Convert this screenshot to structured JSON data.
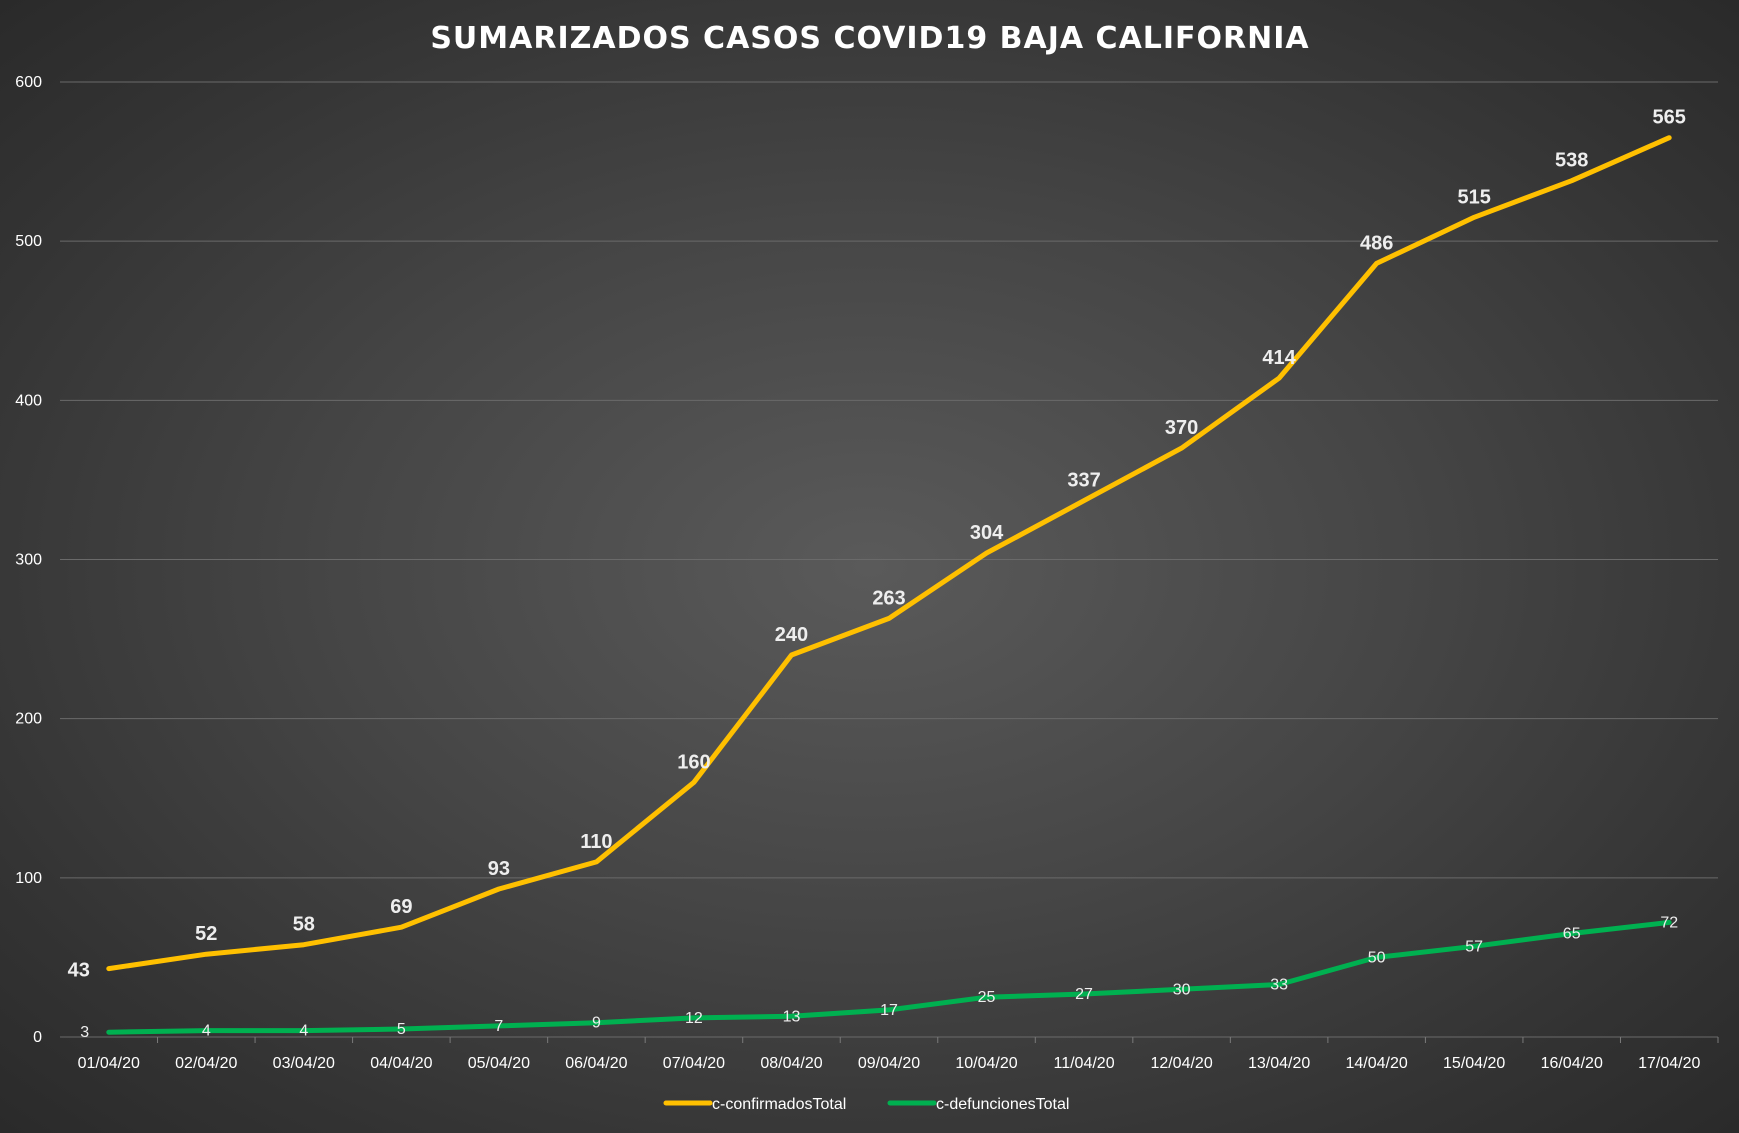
{
  "chart_data": {
    "type": "line",
    "title": "SUMARIZADOS CASOS COVID19 BAJA CALIFORNIA",
    "xlabel": "",
    "ylabel": "",
    "ylim": [
      0,
      600
    ],
    "yticks": [
      0,
      100,
      200,
      300,
      400,
      500,
      600
    ],
    "grid": true,
    "legend_position": "bottom",
    "categories": [
      "01/04/20",
      "02/04/20",
      "03/04/20",
      "04/04/20",
      "05/04/20",
      "06/04/20",
      "07/04/20",
      "08/04/20",
      "09/04/20",
      "10/04/20",
      "11/04/20",
      "12/04/20",
      "13/04/20",
      "14/04/20",
      "15/04/20",
      "16/04/20",
      "17/04/20"
    ],
    "series": [
      {
        "name": "c-confirmadosTotal",
        "color": "#FFC000",
        "values": [
          43,
          52,
          58,
          69,
          93,
          110,
          160,
          240,
          263,
          304,
          337,
          370,
          414,
          486,
          515,
          538,
          565
        ]
      },
      {
        "name": "c-defuncionesTotal",
        "color": "#00B050",
        "values": [
          3,
          4,
          4,
          5,
          7,
          9,
          12,
          13,
          17,
          25,
          27,
          30,
          33,
          50,
          57,
          65,
          72
        ]
      }
    ]
  }
}
